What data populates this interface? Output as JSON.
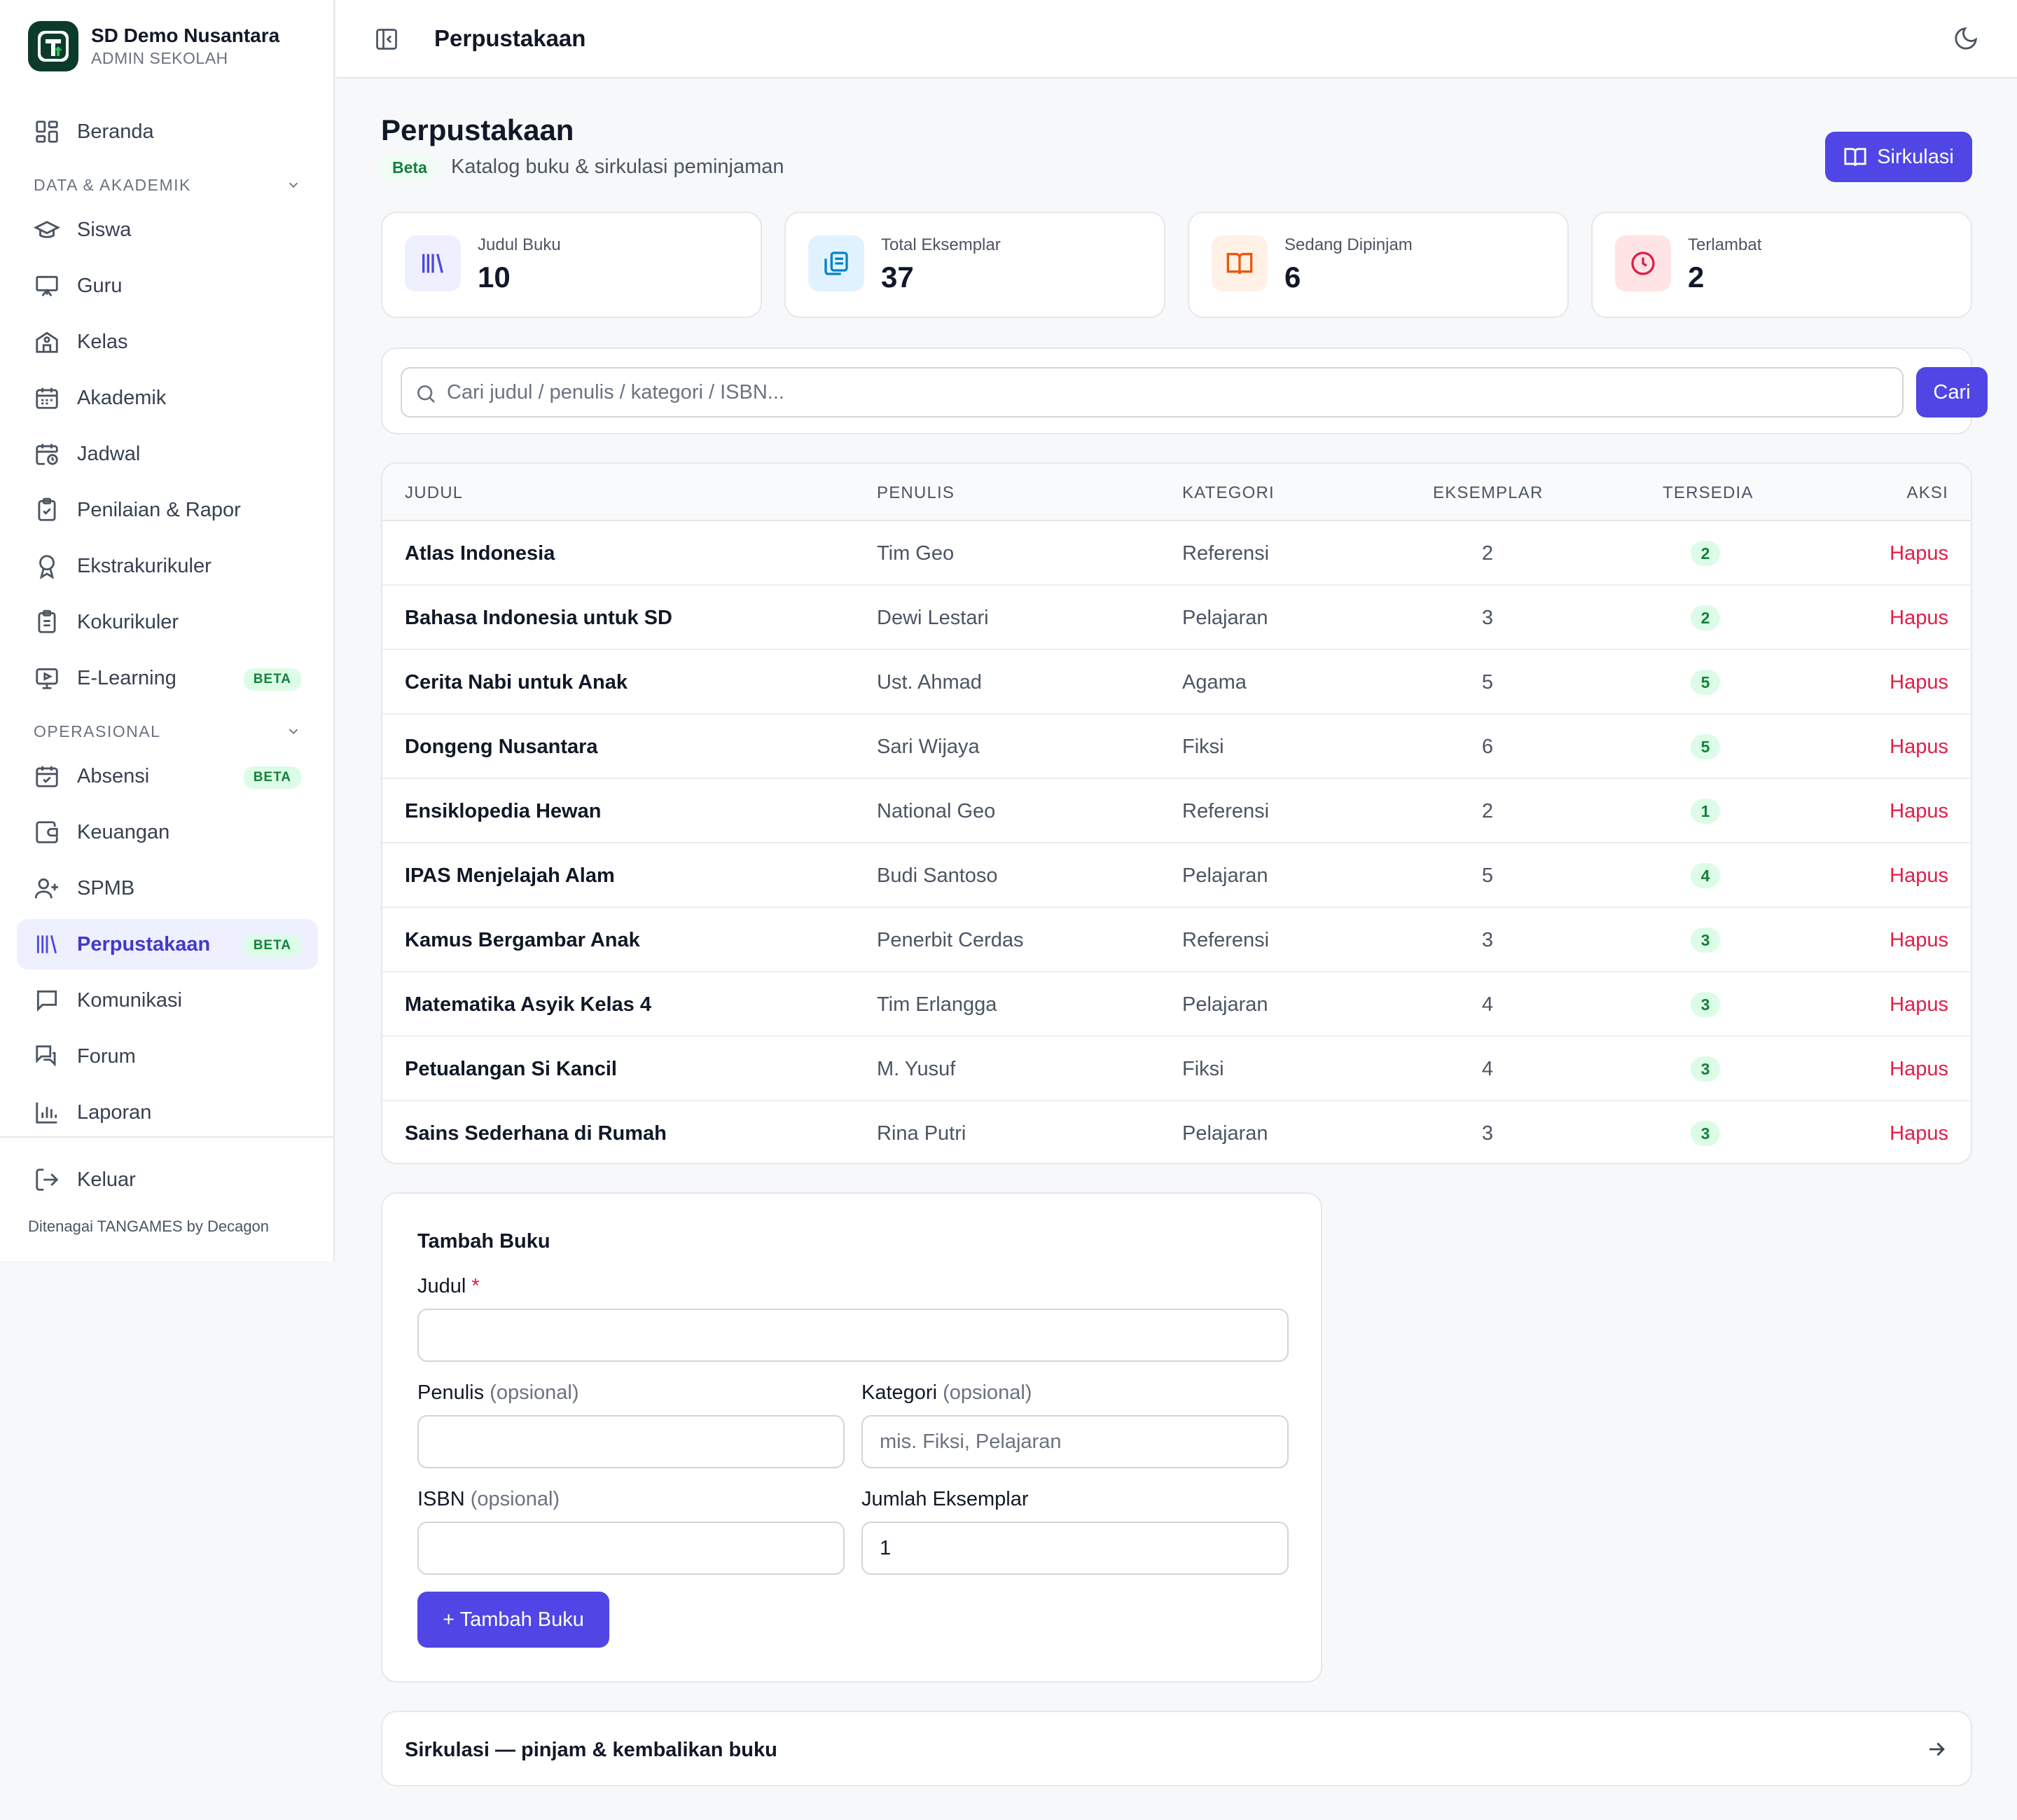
{
  "school": {
    "name": "SD Demo Nusantara",
    "role": "ADMIN SEKOLAH"
  },
  "sidebar": {
    "home": {
      "label": "Beranda",
      "icon": "dashboard-icon"
    },
    "section_academic": "DATA & AKADEMIK",
    "academic": [
      {
        "label": "Siswa",
        "icon": "graduation-cap-icon"
      },
      {
        "label": "Guru",
        "icon": "presentation-icon"
      },
      {
        "label": "Kelas",
        "icon": "school-icon"
      },
      {
        "label": "Akademik",
        "icon": "calendar-icon"
      },
      {
        "label": "Jadwal",
        "icon": "calendar-clock-icon"
      },
      {
        "label": "Penilaian & Rapor",
        "icon": "clipboard-check-icon"
      },
      {
        "label": "Ekstrakurikuler",
        "icon": "award-icon"
      },
      {
        "label": "Kokurikuler",
        "icon": "clipboard-list-icon"
      },
      {
        "label": "E-Learning",
        "icon": "monitor-play-icon",
        "badge": "BETA"
      }
    ],
    "section_operational": "OPERASIONAL",
    "operational": [
      {
        "label": "Absensi",
        "icon": "calendar-check-icon",
        "badge": "BETA"
      },
      {
        "label": "Keuangan",
        "icon": "wallet-icon"
      },
      {
        "label": "SPMB",
        "icon": "user-plus-icon"
      },
      {
        "label": "Perpustakaan",
        "icon": "library-icon",
        "badge": "BETA",
        "active": true
      },
      {
        "label": "Komunikasi",
        "icon": "message-square-icon"
      },
      {
        "label": "Forum",
        "icon": "messages-icon"
      },
      {
        "label": "Laporan",
        "icon": "bar-chart-icon"
      }
    ],
    "logout": {
      "label": "Keluar",
      "icon": "log-out-icon"
    },
    "powered_by": "Ditenagai TANGAMES by Decagon"
  },
  "topbar": {
    "title": "Perpustakaan"
  },
  "page": {
    "title": "Perpustakaan",
    "badge": "Beta",
    "subtitle": "Katalog buku & sirkulasi peminjaman",
    "circulation_button": "Sirkulasi"
  },
  "stats": [
    {
      "label": "Judul Buku",
      "value": "10",
      "icon": "library-icon",
      "bg": "#eef0ff",
      "fg": "#4f46e5"
    },
    {
      "label": "Total Eksemplar",
      "value": "37",
      "icon": "copy-icon",
      "bg": "#e0f2fe",
      "fg": "#0284c7"
    },
    {
      "label": "Sedang Dipinjam",
      "value": "6",
      "icon": "book-open-icon",
      "bg": "#fff1e6",
      "fg": "#ea580c"
    },
    {
      "label": "Terlambat",
      "value": "2",
      "icon": "clock-icon",
      "bg": "#ffe4e6",
      "fg": "#e11d48"
    }
  ],
  "search": {
    "placeholder": "Cari judul / penulis / kategori / ISBN...",
    "value": "",
    "button": "Cari"
  },
  "table": {
    "headers": {
      "title": "JUDUL",
      "author": "PENULIS",
      "category": "KATEGORI",
      "copies": "EKSEMPLAR",
      "available": "TERSEDIA",
      "action": "AKSI"
    },
    "action_label": "Hapus",
    "rows": [
      {
        "title": "Atlas Indonesia",
        "author": "Tim Geo",
        "category": "Referensi",
        "copies": "2",
        "available": "2"
      },
      {
        "title": "Bahasa Indonesia untuk SD",
        "author": "Dewi Lestari",
        "category": "Pelajaran",
        "copies": "3",
        "available": "2"
      },
      {
        "title": "Cerita Nabi untuk Anak",
        "author": "Ust. Ahmad",
        "category": "Agama",
        "copies": "5",
        "available": "5"
      },
      {
        "title": "Dongeng Nusantara",
        "author": "Sari Wijaya",
        "category": "Fiksi",
        "copies": "6",
        "available": "5"
      },
      {
        "title": "Ensiklopedia Hewan",
        "author": "National Geo",
        "category": "Referensi",
        "copies": "2",
        "available": "1"
      },
      {
        "title": "IPAS Menjelajah Alam",
        "author": "Budi Santoso",
        "category": "Pelajaran",
        "copies": "5",
        "available": "4"
      },
      {
        "title": "Kamus Bergambar Anak",
        "author": "Penerbit Cerdas",
        "category": "Referensi",
        "copies": "3",
        "available": "3"
      },
      {
        "title": "Matematika Asyik Kelas 4",
        "author": "Tim Erlangga",
        "category": "Pelajaran",
        "copies": "4",
        "available": "3"
      },
      {
        "title": "Petualangan Si Kancil",
        "author": "M. Yusuf",
        "category": "Fiksi",
        "copies": "4",
        "available": "3"
      },
      {
        "title": "Sains Sederhana di Rumah",
        "author": "Rina Putri",
        "category": "Pelajaran",
        "copies": "3",
        "available": "3"
      }
    ]
  },
  "form": {
    "title": "Tambah Buku",
    "title_label": "Judul",
    "required_mark": "*",
    "title_value": "",
    "author_label": "Penulis",
    "author_value": "",
    "category_label": "Kategori",
    "category_placeholder": "mis. Fiksi, Pelajaran",
    "isbn_label": "ISBN",
    "isbn_value": "",
    "optional": "(opsional)",
    "copies_label": "Jumlah Eksemplar",
    "copies_value": "1",
    "submit": "+ Tambah Buku"
  },
  "circulation_link": {
    "label": "Sirkulasi — pinjam & kembalikan buku",
    "icon": "arrow-right-icon"
  },
  "colors": {
    "accent": "#4f46e5",
    "danger": "#e11d48",
    "success": "#15803d"
  }
}
